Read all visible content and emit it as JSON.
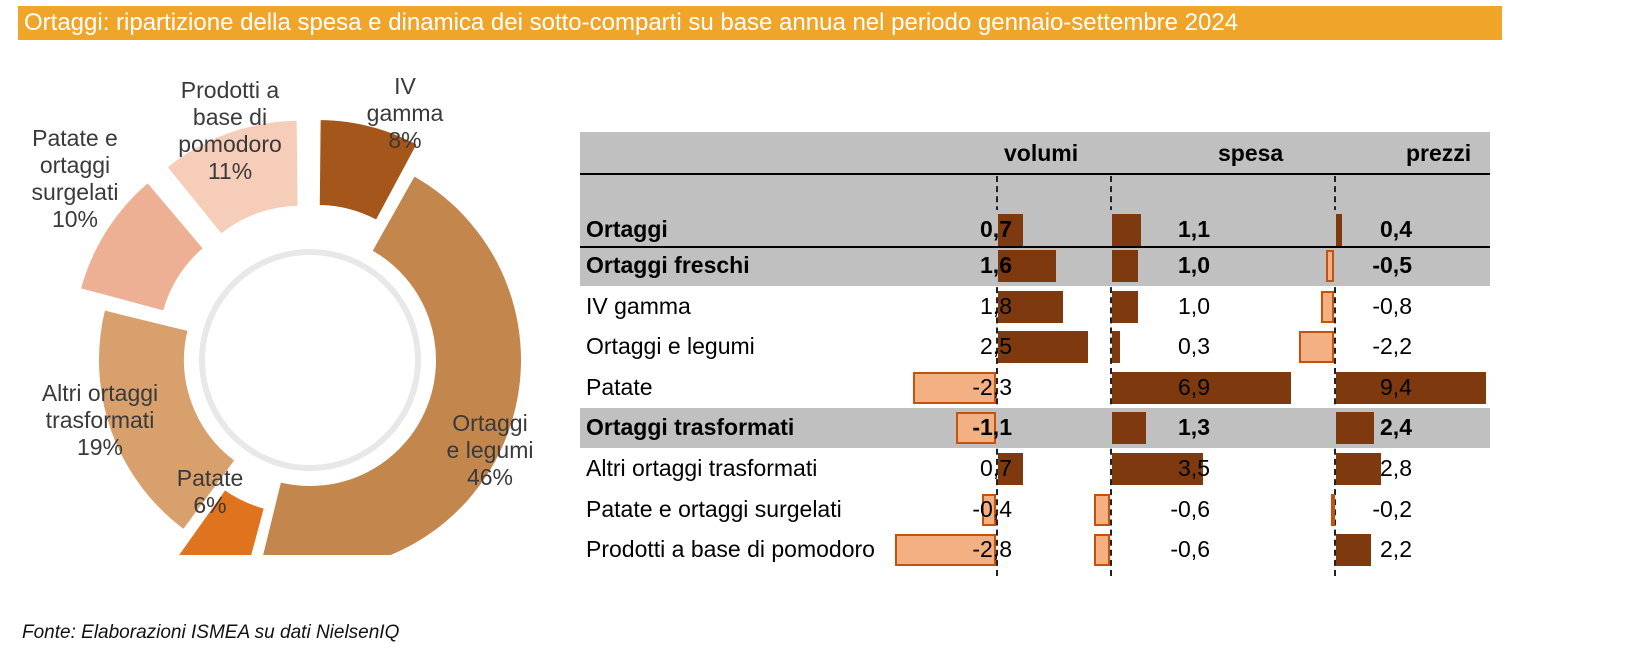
{
  "title": "Ortaggi: ripartizione della spesa e dinamica dei sotto-comparti su base annua nel periodo gennaio-settembre 2024",
  "source": "Fonte: Elaborazioni ISMEA su dati NielsenIQ",
  "colors": {
    "title_bg": "#EFA52A",
    "positive_bar": "#7E3A0E",
    "negative_bar": "#F2B083",
    "negative_border": "#C2530E",
    "header_gray": "#C0C0C0"
  },
  "chart_data": [
    {
      "type": "pie",
      "variant": "donut",
      "slices": [
        {
          "label": "IV gamma",
          "display": "IV\ngamma",
          "value": 8,
          "pct_label": "8%",
          "color": "#A5561A",
          "exploded": true
        },
        {
          "label": "Ortaggi e legumi",
          "display": "Ortaggi\ne legumi",
          "value": 46,
          "pct_label": "46%",
          "color": "#C3874E",
          "exploded": false
        },
        {
          "label": "Patate",
          "display": "Patate",
          "value": 6,
          "pct_label": "6%",
          "color": "#E0731E",
          "exploded": true
        },
        {
          "label": "Altri ortaggi trasformati",
          "display": "Altri ortaggi\ntrasformati",
          "value": 19,
          "pct_label": "19%",
          "color": "#D7A06C",
          "exploded": false
        },
        {
          "label": "Patate e ortaggi surgelati",
          "display": "Patate e\nortaggi\nsurgelati",
          "value": 10,
          "pct_label": "10%",
          "color": "#EDB095",
          "exploded": true
        },
        {
          "label": "Prodotti a base di pomodoro",
          "display": "Prodotti a\nbase di\npomodoro",
          "value": 11,
          "pct_label": "11%",
          "color": "#F5CDB9",
          "exploded": true
        }
      ]
    },
    {
      "type": "table",
      "columns": [
        "volumi",
        "spesa",
        "prezzi"
      ],
      "rows": [
        {
          "label": "Ortaggi",
          "bold": true,
          "shaded": true,
          "volumi": 0.7,
          "spesa": 1.1,
          "prezzi": 0.4,
          "volumi_label": "0,7",
          "spesa_label": "1,1",
          "prezzi_label": "0,4"
        },
        {
          "label": "Ortaggi freschi",
          "bold": true,
          "shaded": true,
          "volumi": 1.6,
          "spesa": 1.0,
          "prezzi": -0.5,
          "volumi_label": "1,6",
          "spesa_label": "1,0",
          "prezzi_label": "-0,5"
        },
        {
          "label": "IV gamma",
          "bold": false,
          "shaded": false,
          "volumi": 1.8,
          "spesa": 1.0,
          "prezzi": -0.8,
          "volumi_label": "1,8",
          "spesa_label": "1,0",
          "prezzi_label": "-0,8"
        },
        {
          "label": "Ortaggi e legumi",
          "bold": false,
          "shaded": false,
          "volumi": 2.5,
          "spesa": 0.3,
          "prezzi": -2.2,
          "volumi_label": "2,5",
          "spesa_label": "0,3",
          "prezzi_label": "-2,2"
        },
        {
          "label": "Patate",
          "bold": false,
          "shaded": false,
          "volumi": -2.3,
          "spesa": 6.9,
          "prezzi": 9.4,
          "volumi_label": "-2,3",
          "spesa_label": "6,9",
          "prezzi_label": "9,4"
        },
        {
          "label": "Ortaggi trasformati",
          "bold": true,
          "shaded": true,
          "volumi": -1.1,
          "spesa": 1.3,
          "prezzi": 2.4,
          "volumi_label": "-1,1",
          "spesa_label": "1,3",
          "prezzi_label": "2,4"
        },
        {
          "label": "Altri ortaggi trasformati",
          "bold": false,
          "shaded": false,
          "volumi": 0.7,
          "spesa": 3.5,
          "prezzi": 2.8,
          "volumi_label": "0,7",
          "spesa_label": "3,5",
          "prezzi_label": "2,8"
        },
        {
          "label": "Patate e ortaggi surgelati",
          "bold": false,
          "shaded": false,
          "volumi": -0.4,
          "spesa": -0.6,
          "prezzi": -0.2,
          "volumi_label": "-0,4",
          "spesa_label": "-0,6",
          "prezzi_label": "-0,2"
        },
        {
          "label": "Prodotti a base di pomodoro",
          "bold": false,
          "shaded": false,
          "volumi": -2.8,
          "spesa": -0.6,
          "prezzi": 2.2,
          "volumi_label": "-2,8",
          "spesa_label": "-0,6",
          "prezzi_label": "2,2"
        }
      ]
    }
  ]
}
